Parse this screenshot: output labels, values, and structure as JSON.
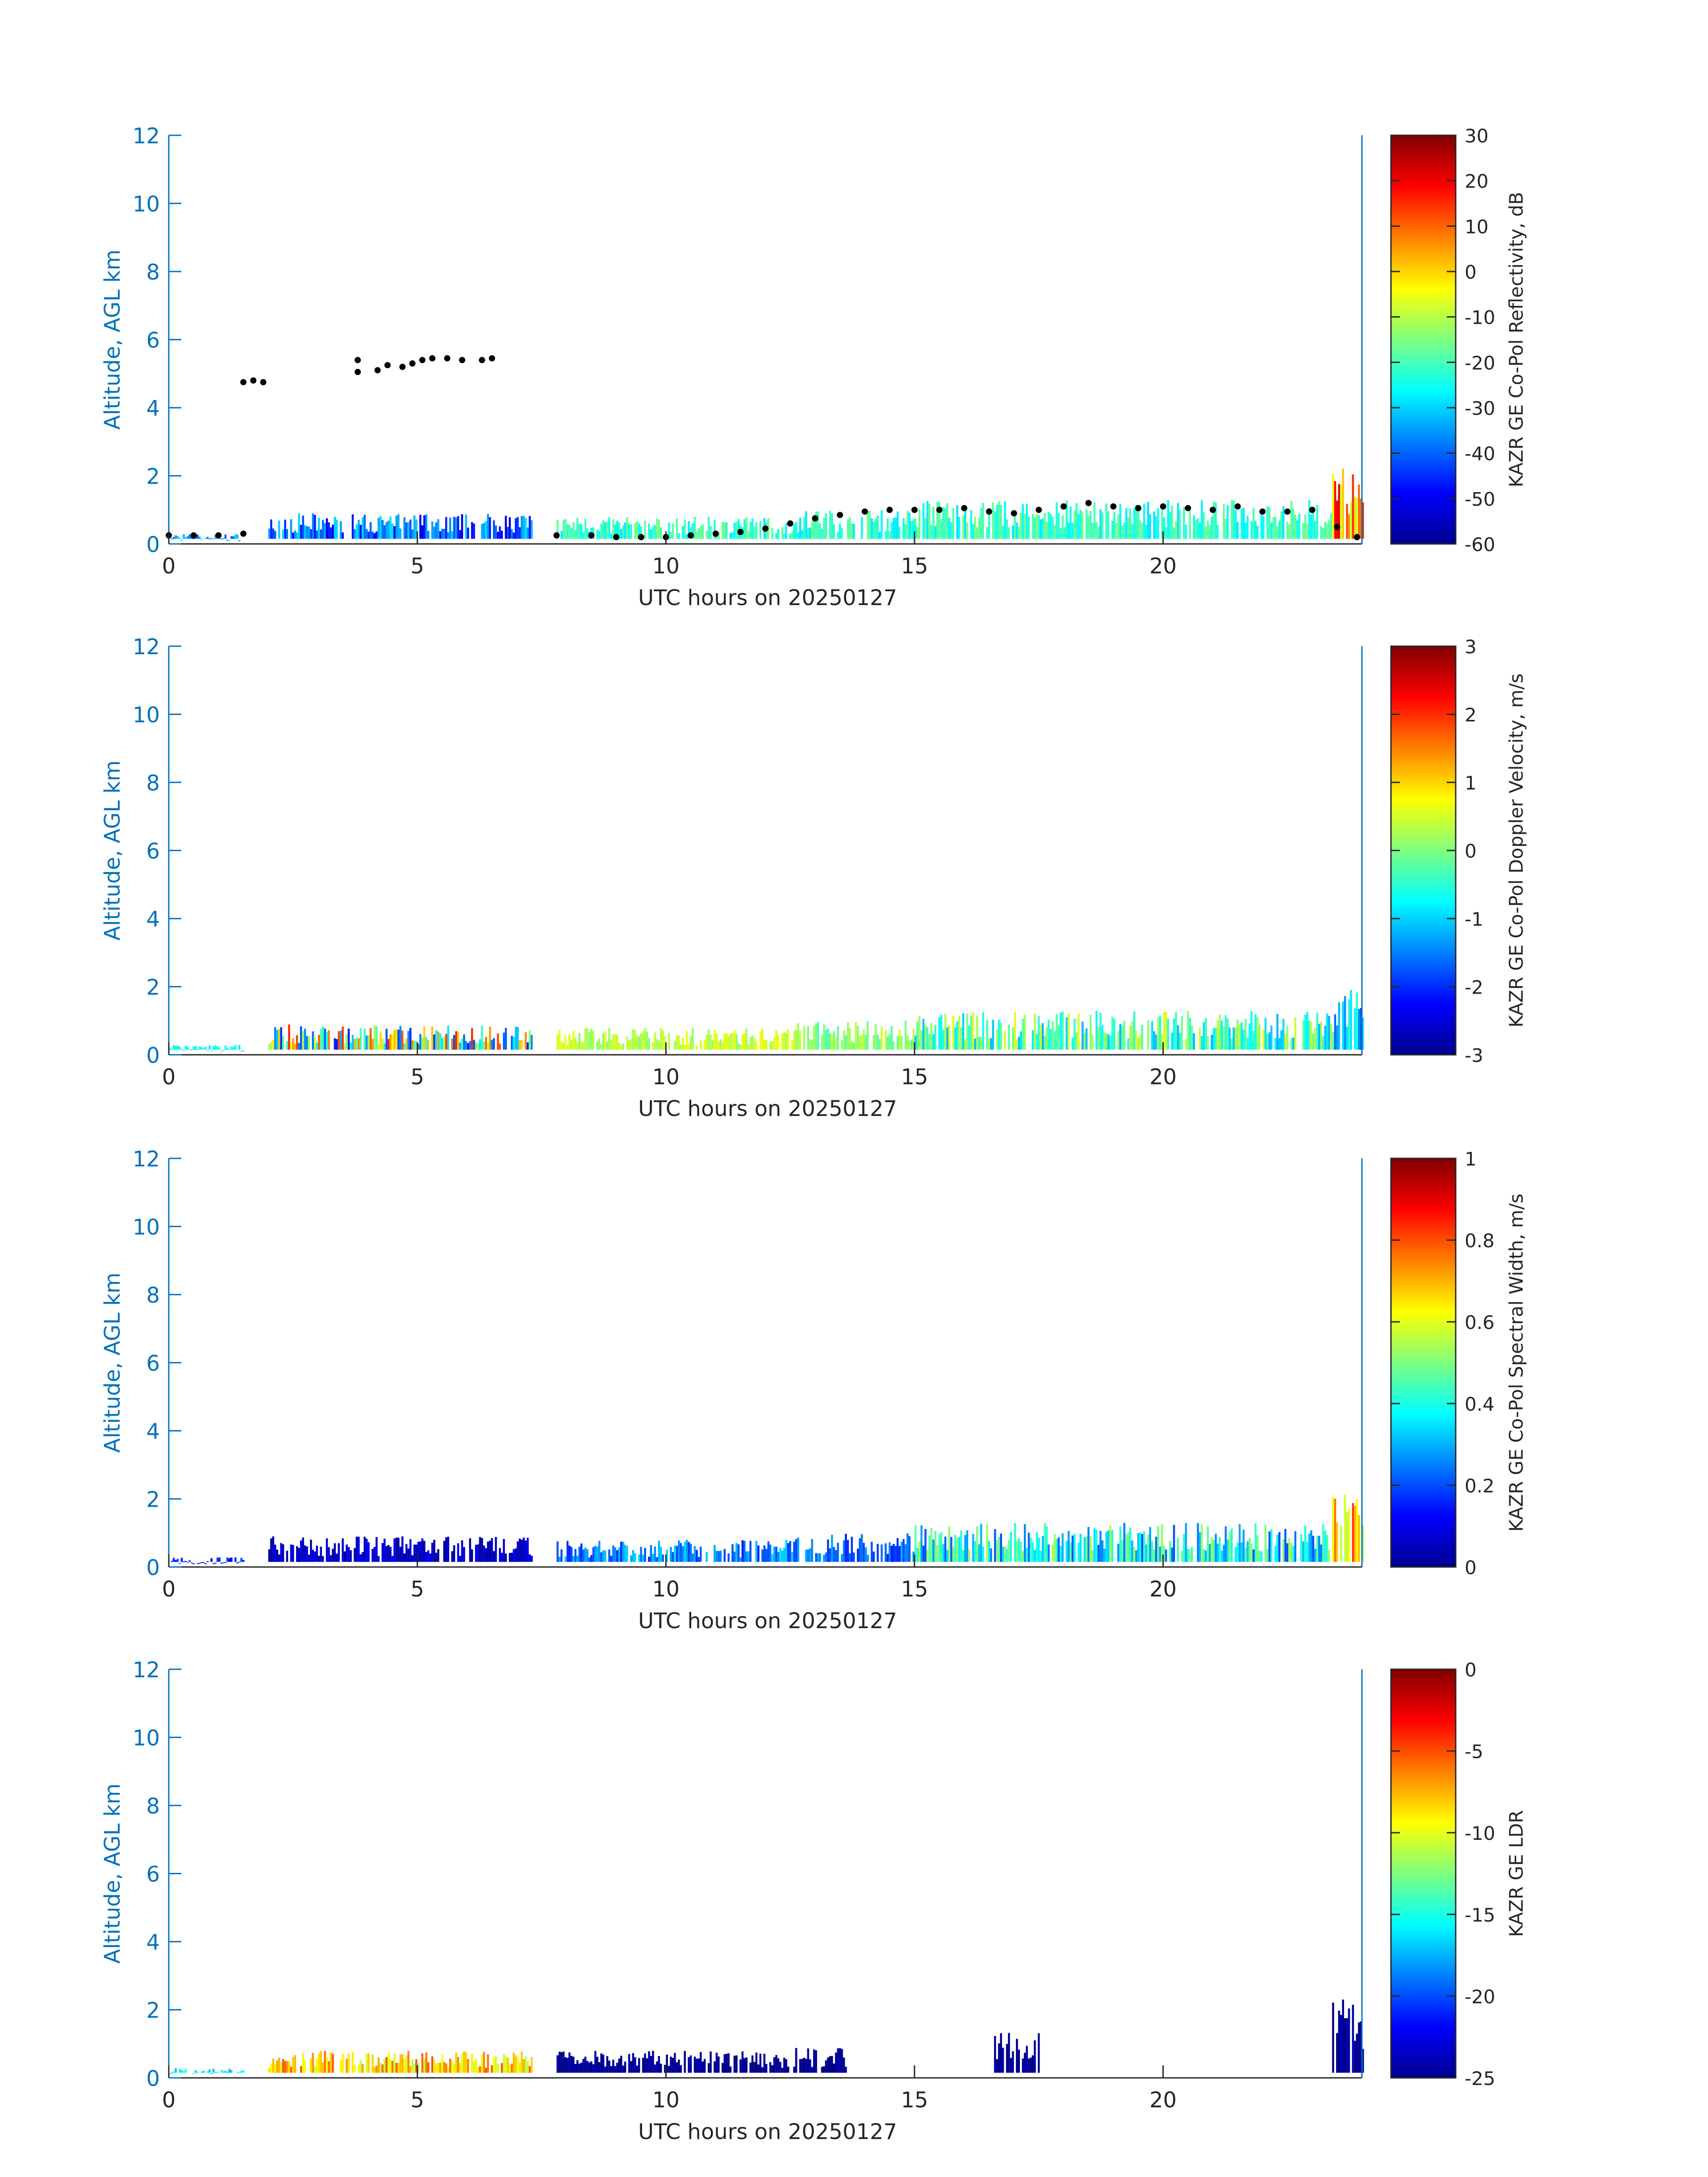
{
  "figure": {
    "panel_count": 4,
    "colormap": "jet",
    "axis_color": "#0072BD",
    "label_color": "#262626"
  },
  "chart_data": [
    {
      "type": "heatmap",
      "title": "",
      "xlabel": "UTC hours on 20250127",
      "ylabel": "Altitude, AGL km",
      "xlim": [
        0,
        24
      ],
      "ylim": [
        0,
        12
      ],
      "xticks": [
        "0",
        "5",
        "10",
        "15",
        "20"
      ],
      "yticks": [
        "0",
        "2",
        "4",
        "6",
        "8",
        "10",
        "12"
      ],
      "colorbar_label": "KAZR GE Co-Pol Reflectivity, dB",
      "colorbar_range": [
        -60,
        30
      ],
      "colorbar_ticks": [
        "-60",
        "-50",
        "-40",
        "-30",
        "-20",
        "-10",
        "0",
        "10",
        "20",
        "30"
      ],
      "echo": [
        {
          "x0": 0.0,
          "x1": 1.5,
          "top": 0.3,
          "v0": 0.2,
          "v1": 0.35
        },
        {
          "x0": 2.0,
          "x1": 7.3,
          "top": 0.9,
          "v0": 0.1,
          "v1": 0.35
        },
        {
          "x0": 7.8,
          "x1": 12.6,
          "top": 0.8,
          "v0": 0.35,
          "v1": 0.5
        },
        {
          "x0": 12.6,
          "x1": 15.0,
          "top": 1.0,
          "v0": 0.35,
          "v1": 0.5
        },
        {
          "x0": 15.0,
          "x1": 23.4,
          "top": 1.3,
          "v0": 0.35,
          "v1": 0.5
        },
        {
          "x0": 23.4,
          "x1": 24.0,
          "top": 2.3,
          "v0": 0.55,
          "v1": 0.9
        }
      ],
      "cloud_base_points": [
        [
          0.0,
          0.25
        ],
        [
          0.5,
          0.25
        ],
        [
          1.0,
          0.25
        ],
        [
          1.5,
          0.3
        ],
        [
          1.5,
          4.75
        ],
        [
          1.7,
          4.8
        ],
        [
          1.9,
          4.75
        ],
        [
          3.8,
          5.4
        ],
        [
          3.8,
          5.05
        ],
        [
          4.2,
          5.1
        ],
        [
          4.4,
          5.25
        ],
        [
          4.7,
          5.2
        ],
        [
          4.9,
          5.3
        ],
        [
          5.1,
          5.4
        ],
        [
          5.3,
          5.45
        ],
        [
          5.6,
          5.45
        ],
        [
          5.9,
          5.4
        ],
        [
          6.3,
          5.4
        ],
        [
          6.5,
          5.45
        ],
        [
          7.8,
          0.25
        ],
        [
          8.5,
          0.25
        ],
        [
          9.0,
          0.2
        ],
        [
          9.5,
          0.2
        ],
        [
          10.0,
          0.2
        ],
        [
          10.5,
          0.25
        ],
        [
          11.0,
          0.3
        ],
        [
          11.5,
          0.35
        ],
        [
          12.0,
          0.45
        ],
        [
          12.5,
          0.6
        ],
        [
          13.0,
          0.75
        ],
        [
          13.5,
          0.85
        ],
        [
          14.0,
          0.95
        ],
        [
          14.5,
          1.0
        ],
        [
          15.0,
          1.0
        ],
        [
          15.5,
          1.0
        ],
        [
          16.0,
          1.05
        ],
        [
          16.5,
          0.95
        ],
        [
          17.0,
          0.9
        ],
        [
          17.5,
          1.0
        ],
        [
          18.0,
          1.1
        ],
        [
          18.5,
          1.2
        ],
        [
          19.0,
          1.1
        ],
        [
          19.5,
          1.05
        ],
        [
          20.0,
          1.1
        ],
        [
          20.5,
          1.05
        ],
        [
          21.0,
          1.0
        ],
        [
          21.5,
          1.1
        ],
        [
          22.0,
          0.95
        ],
        [
          22.5,
          0.95
        ],
        [
          23.0,
          1.0
        ],
        [
          23.5,
          0.5
        ],
        [
          23.9,
          0.2
        ]
      ]
    },
    {
      "type": "heatmap",
      "title": "",
      "xlabel": "UTC hours on 20250127",
      "ylabel": "Altitude, AGL km",
      "xlim": [
        0,
        24
      ],
      "ylim": [
        0,
        12
      ],
      "xticks": [
        "0",
        "5",
        "10",
        "15",
        "20"
      ],
      "yticks": [
        "0",
        "2",
        "4",
        "6",
        "8",
        "10",
        "12"
      ],
      "colorbar_label": "KAZR GE Co-Pol Doppler Velocity, m/s",
      "colorbar_range": [
        -3,
        3
      ],
      "colorbar_ticks": [
        "-3",
        "-2",
        "-1",
        "0",
        "1",
        "2",
        "3"
      ],
      "echo": [
        {
          "x0": 0.0,
          "x1": 1.5,
          "top": 0.3,
          "v0": 0.35,
          "v1": 0.4
        },
        {
          "x0": 2.0,
          "x1": 7.3,
          "top": 0.9,
          "v0": 0.15,
          "v1": 0.85
        },
        {
          "x0": 7.8,
          "x1": 12.6,
          "top": 0.8,
          "v0": 0.5,
          "v1": 0.62
        },
        {
          "x0": 12.6,
          "x1": 15.0,
          "top": 1.0,
          "v0": 0.45,
          "v1": 0.6
        },
        {
          "x0": 15.0,
          "x1": 23.4,
          "top": 1.3,
          "v0": 0.3,
          "v1": 0.6
        },
        {
          "x0": 23.4,
          "x1": 24.0,
          "top": 2.3,
          "v0": 0.2,
          "v1": 0.45
        }
      ]
    },
    {
      "type": "heatmap",
      "title": "",
      "xlabel": "UTC hours on 20250127",
      "ylabel": "Altitude, AGL km",
      "xlim": [
        0,
        24
      ],
      "ylim": [
        0,
        12
      ],
      "xticks": [
        "0",
        "5",
        "10",
        "15",
        "20"
      ],
      "yticks": [
        "0",
        "2",
        "4",
        "6",
        "8",
        "10",
        "12"
      ],
      "colorbar_label": "KAZR GE Co-Pol Spectral Width, m/s",
      "colorbar_range": [
        0,
        1
      ],
      "colorbar_ticks": [
        "0",
        "0.2",
        "0.4",
        "0.6",
        "0.8",
        "1"
      ],
      "echo": [
        {
          "x0": 0.0,
          "x1": 1.5,
          "top": 0.3,
          "v0": 0.1,
          "v1": 0.2
        },
        {
          "x0": 2.0,
          "x1": 7.3,
          "top": 0.9,
          "v0": 0.02,
          "v1": 0.12
        },
        {
          "x0": 7.8,
          "x1": 12.6,
          "top": 0.8,
          "v0": 0.15,
          "v1": 0.35
        },
        {
          "x0": 12.6,
          "x1": 15.0,
          "top": 1.0,
          "v0": 0.15,
          "v1": 0.3
        },
        {
          "x0": 15.0,
          "x1": 23.4,
          "top": 1.3,
          "v0": 0.2,
          "v1": 0.55
        },
        {
          "x0": 23.4,
          "x1": 24.0,
          "top": 2.3,
          "v0": 0.3,
          "v1": 0.85
        }
      ]
    },
    {
      "type": "heatmap",
      "title": "",
      "xlabel": "UTC hours on 20250127",
      "ylabel": "Altitude, AGL km",
      "xlim": [
        0,
        24
      ],
      "ylim": [
        0,
        12
      ],
      "xticks": [
        "0",
        "5",
        "10",
        "15",
        "20"
      ],
      "yticks": [
        "0",
        "2",
        "4",
        "6",
        "8",
        "10",
        "12"
      ],
      "colorbar_label": "KAZR GE LDR",
      "colorbar_range": [
        -25,
        0
      ],
      "colorbar_ticks": [
        "-25",
        "-20",
        "-15",
        "-10",
        "-5",
        "0"
      ],
      "echo": [
        {
          "x0": 0.0,
          "x1": 1.5,
          "top": 0.3,
          "v0": 0.3,
          "v1": 0.45
        },
        {
          "x0": 2.0,
          "x1": 7.3,
          "top": 0.8,
          "v0": 0.55,
          "v1": 0.8
        },
        {
          "x0": 7.8,
          "x1": 12.6,
          "top": 0.8,
          "v0": 0.0,
          "v1": 0.04
        },
        {
          "x0": 12.6,
          "x1": 13.6,
          "top": 0.9,
          "v0": 0.0,
          "v1": 0.04
        },
        {
          "x0": 16.6,
          "x1": 17.5,
          "top": 1.4,
          "v0": 0.0,
          "v1": 0.04
        },
        {
          "x0": 23.4,
          "x1": 24.0,
          "top": 2.3,
          "v0": 0.0,
          "v1": 0.05
        }
      ]
    }
  ]
}
